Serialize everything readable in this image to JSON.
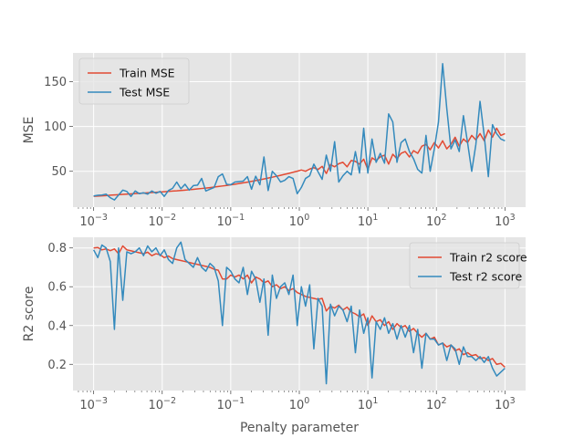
{
  "chart_data": [
    {
      "type": "line",
      "x_scale": "log",
      "xlim": [
        0.0005,
        2000
      ],
      "ylim": [
        10,
        182
      ],
      "x_ticks": [
        0.001,
        0.01,
        0.1,
        1,
        10,
        100,
        1000
      ],
      "x_tick_labels": [
        "10^-3",
        "10^-2",
        "10^-1",
        "10^0",
        "10^1",
        "10^2",
        "10^3"
      ],
      "y_ticks": [
        50,
        100,
        150
      ],
      "y_tick_labels": [
        "50",
        "100",
        "150"
      ],
      "xlabel": "",
      "ylabel": "MSE",
      "grid": true,
      "legend_position": "top-left",
      "x": [
        0.001,
        0.00115,
        0.00132,
        0.00152,
        0.00175,
        0.00201,
        0.00231,
        0.00266,
        0.00305,
        0.00351,
        0.00404,
        0.00464,
        0.00534,
        0.00614,
        0.00705,
        0.00811,
        0.00933,
        0.01072,
        0.01233,
        0.01417,
        0.0163,
        0.01874,
        0.02154,
        0.02477,
        0.02848,
        0.03275,
        0.03765,
        0.04329,
        0.04977,
        0.05722,
        0.06579,
        0.07565,
        0.08697,
        0.1,
        0.115,
        0.132,
        0.152,
        0.175,
        0.201,
        0.231,
        0.266,
        0.305,
        0.351,
        0.404,
        0.464,
        0.534,
        0.614,
        0.705,
        0.811,
        0.933,
        1.072,
        1.233,
        1.417,
        1.63,
        1.874,
        2.154,
        2.477,
        2.848,
        3.275,
        3.765,
        4.329,
        4.977,
        5.722,
        6.579,
        7.565,
        8.697,
        10.0,
        11.5,
        13.2,
        15.2,
        17.5,
        20.1,
        23.1,
        26.6,
        30.5,
        35.1,
        40.4,
        46.4,
        53.4,
        61.4,
        70.5,
        81.1,
        93.3,
        107.2,
        123.3,
        141.7,
        163.0,
        187.4,
        215.4,
        247.7,
        284.8,
        327.5,
        376.5,
        432.9,
        497.7,
        572.2,
        657.9,
        756.5,
        869.7,
        1000.0
      ],
      "series": [
        {
          "name": "Train MSE",
          "color": "#e24a33",
          "values": [
            22.1,
            22.3,
            22.6,
            22.9,
            23.3,
            23.6,
            23.9,
            24.2,
            24.5,
            24.8,
            25.1,
            25.4,
            25.7,
            26.0,
            26.3,
            26.6,
            26.9,
            27.2,
            27.5,
            27.9,
            28.2,
            28.6,
            29.0,
            29.4,
            29.9,
            30.3,
            30.8,
            31.3,
            31.8,
            32.4,
            33.0,
            33.6,
            34.2,
            34.9,
            35.6,
            36.3,
            37.1,
            37.9,
            38.7,
            39.6,
            40.5,
            41.4,
            42.4,
            43.4,
            44.4,
            45.5,
            46.6,
            47.7,
            48.9,
            50.1,
            51.4,
            50.0,
            52.5,
            54.0,
            52.0,
            55.5,
            47.5,
            57.5,
            55.0,
            58.5,
            60.0,
            55.0,
            62.0,
            61.0,
            58.0,
            63.5,
            52.0,
            65.0,
            62.0,
            66.0,
            68.0,
            58.0,
            69.0,
            64.0,
            70.0,
            72.0,
            66.0,
            73.0,
            70.0,
            78.0,
            80.0,
            74.0,
            82.0,
            76.0,
            84.0,
            75.0,
            80.0,
            88.0,
            78.0,
            86.0,
            82.0,
            90.0,
            85.0,
            92.0,
            84.0,
            96.0,
            88.0,
            98.0,
            90.0,
            92.0
          ]
        },
        {
          "name": "Test MSE",
          "color": "#348abd",
          "values": [
            22.5,
            23.2,
            23.5,
            24.5,
            20.5,
            18.0,
            23.5,
            29.0,
            27.5,
            22.0,
            28.0,
            25.0,
            26.0,
            24.5,
            28.0,
            25.5,
            27.5,
            22.0,
            28.5,
            31.0,
            38.0,
            30.5,
            35.5,
            29.0,
            34.0,
            34.5,
            42.0,
            28.0,
            30.0,
            32.0,
            44.0,
            47.0,
            35.5,
            35.0,
            38.0,
            38.5,
            39.0,
            44.0,
            30.0,
            44.5,
            35.0,
            66.0,
            28.5,
            50.0,
            45.0,
            38.0,
            40.0,
            44.0,
            42.0,
            25.0,
            32.0,
            42.0,
            45.0,
            58.0,
            49.5,
            41.0,
            68.0,
            50.0,
            83.0,
            38.0,
            45.0,
            50.0,
            46.0,
            72.0,
            48.0,
            98.0,
            48.0,
            86.0,
            60.0,
            70.0,
            59.0,
            114.0,
            105.0,
            60.0,
            82.0,
            86.0,
            72.0,
            64.0,
            52.0,
            48.0,
            90.0,
            50.0,
            75.0,
            105.0,
            170.0,
            120.0,
            75.0,
            85.0,
            72.0,
            112.0,
            82.0,
            50.0,
            80.0,
            128.0,
            90.0,
            44.0,
            102.0,
            92.0,
            86.0,
            84.0
          ]
        }
      ]
    },
    {
      "type": "line",
      "x_scale": "log",
      "xlim": [
        0.0005,
        2000
      ],
      "ylim": [
        0.065,
        0.855
      ],
      "x_ticks": [
        0.001,
        0.01,
        0.1,
        1,
        10,
        100,
        1000
      ],
      "x_tick_labels": [
        "10^-3",
        "10^-2",
        "10^-1",
        "10^0",
        "10^1",
        "10^2",
        "10^3"
      ],
      "y_ticks": [
        0.2,
        0.4,
        0.6,
        0.8
      ],
      "y_tick_labels": [
        "0.2",
        "0.4",
        "0.6",
        "0.8"
      ],
      "xlabel": "Penalty parameter",
      "ylabel": "R2 score",
      "grid": true,
      "legend_position": "top-right",
      "x": [
        0.001,
        0.00115,
        0.00132,
        0.00152,
        0.00175,
        0.00201,
        0.00231,
        0.00266,
        0.00305,
        0.00351,
        0.00404,
        0.00464,
        0.00534,
        0.00614,
        0.00705,
        0.00811,
        0.00933,
        0.01072,
        0.01233,
        0.01417,
        0.0163,
        0.01874,
        0.02154,
        0.02477,
        0.02848,
        0.03275,
        0.03765,
        0.04329,
        0.04977,
        0.05722,
        0.06579,
        0.07565,
        0.08697,
        0.1,
        0.115,
        0.132,
        0.152,
        0.175,
        0.201,
        0.231,
        0.266,
        0.305,
        0.351,
        0.404,
        0.464,
        0.534,
        0.614,
        0.705,
        0.811,
        0.933,
        1.072,
        1.233,
        1.417,
        1.63,
        1.874,
        2.154,
        2.477,
        2.848,
        3.275,
        3.765,
        4.329,
        4.977,
        5.722,
        6.579,
        7.565,
        8.697,
        10.0,
        11.5,
        13.2,
        15.2,
        17.5,
        20.1,
        23.1,
        26.6,
        30.5,
        35.1,
        40.4,
        46.4,
        53.4,
        61.4,
        70.5,
        81.1,
        93.3,
        107.2,
        123.3,
        141.7,
        163.0,
        187.4,
        215.4,
        247.7,
        284.8,
        327.5,
        376.5,
        432.9,
        497.7,
        572.2,
        657.9,
        756.5,
        869.7,
        1000.0
      ],
      "series": [
        {
          "name": "Train r2 score",
          "color": "#e24a33",
          "values": [
            0.8,
            0.802,
            0.79,
            0.795,
            0.786,
            0.795,
            0.77,
            0.81,
            0.79,
            0.785,
            0.78,
            0.775,
            0.77,
            0.778,
            0.76,
            0.77,
            0.765,
            0.75,
            0.758,
            0.745,
            0.74,
            0.735,
            0.73,
            0.725,
            0.72,
            0.715,
            0.71,
            0.705,
            0.7,
            0.69,
            0.685,
            0.64,
            0.64,
            0.66,
            0.65,
            0.66,
            0.64,
            0.66,
            0.62,
            0.65,
            0.64,
            0.62,
            0.63,
            0.6,
            0.61,
            0.59,
            0.6,
            0.58,
            0.59,
            0.57,
            0.56,
            0.55,
            0.545,
            0.54,
            0.535,
            0.54,
            0.475,
            0.5,
            0.49,
            0.505,
            0.48,
            0.495,
            0.47,
            0.46,
            0.445,
            0.46,
            0.4,
            0.45,
            0.42,
            0.43,
            0.4,
            0.42,
            0.38,
            0.41,
            0.39,
            0.4,
            0.37,
            0.385,
            0.36,
            0.34,
            0.36,
            0.33,
            0.34,
            0.3,
            0.31,
            0.29,
            0.3,
            0.27,
            0.28,
            0.25,
            0.26,
            0.245,
            0.25,
            0.23,
            0.235,
            0.22,
            0.23,
            0.2,
            0.205,
            0.185
          ]
        },
        {
          "name": "Test r2 score",
          "color": "#348abd",
          "values": [
            0.79,
            0.75,
            0.815,
            0.8,
            0.73,
            0.38,
            0.8,
            0.53,
            0.78,
            0.77,
            0.78,
            0.8,
            0.76,
            0.81,
            0.78,
            0.8,
            0.76,
            0.79,
            0.74,
            0.72,
            0.8,
            0.83,
            0.74,
            0.72,
            0.7,
            0.75,
            0.7,
            0.68,
            0.72,
            0.7,
            0.63,
            0.4,
            0.7,
            0.68,
            0.64,
            0.62,
            0.7,
            0.56,
            0.68,
            0.64,
            0.52,
            0.64,
            0.35,
            0.66,
            0.54,
            0.6,
            0.62,
            0.56,
            0.66,
            0.4,
            0.6,
            0.5,
            0.61,
            0.28,
            0.54,
            0.5,
            0.1,
            0.51,
            0.45,
            0.5,
            0.48,
            0.42,
            0.5,
            0.26,
            0.48,
            0.36,
            0.44,
            0.13,
            0.42,
            0.38,
            0.44,
            0.36,
            0.41,
            0.33,
            0.4,
            0.34,
            0.4,
            0.26,
            0.38,
            0.18,
            0.36,
            0.33,
            0.33,
            0.3,
            0.31,
            0.22,
            0.3,
            0.28,
            0.2,
            0.29,
            0.24,
            0.24,
            0.22,
            0.24,
            0.21,
            0.24,
            0.18,
            0.14,
            0.16,
            0.18
          ]
        }
      ]
    }
  ]
}
